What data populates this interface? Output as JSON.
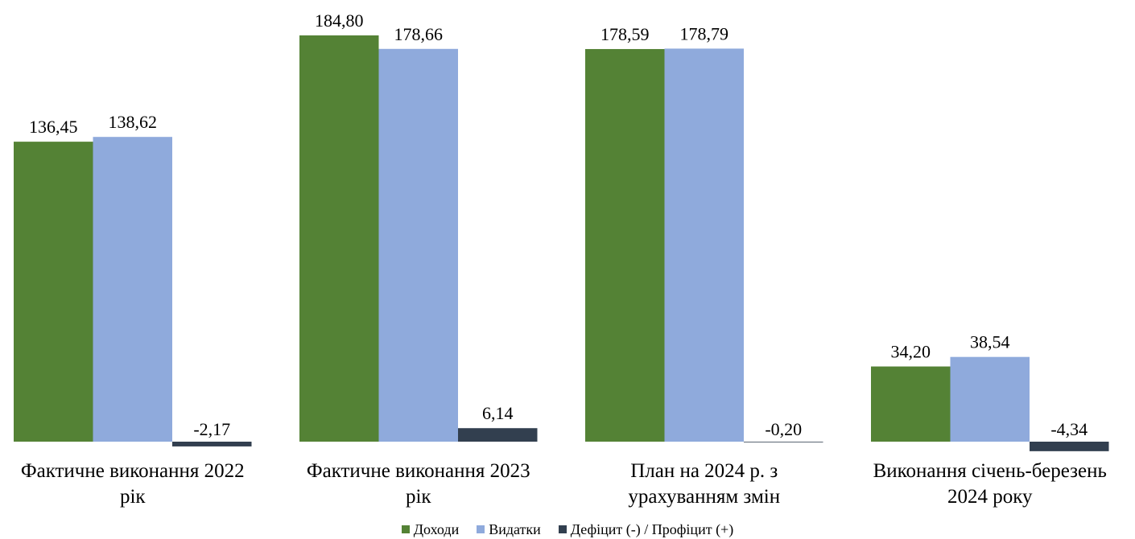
{
  "chart_data": {
    "type": "bar",
    "categories": [
      "Фактичне виконання 2022 рік",
      "Фактичне виконання 2023 рік",
      "План на 2024 р. з урахуванням змін",
      "Виконання січень-березень 2024 року"
    ],
    "category_label_lines": [
      [
        "Фактичне виконання 2022",
        "рік"
      ],
      [
        "Фактичне виконання 2023",
        "рік"
      ],
      [
        "План на 2024 р. з",
        "урахуванням змін"
      ],
      [
        "Виконання січень-березень",
        "2024 року"
      ]
    ],
    "series": [
      {
        "name": "Доходи",
        "color": "#548235",
        "values": [
          136.45,
          184.8,
          178.59,
          34.2
        ],
        "labels": [
          "136,45",
          "184,80",
          "178,59",
          "34,20"
        ]
      },
      {
        "name": "Видатки",
        "color": "#8FAADC",
        "values": [
          138.62,
          178.66,
          178.79,
          38.54
        ],
        "labels": [
          "138,62",
          "178,66",
          "178,79",
          "38,54"
        ]
      },
      {
        "name": "Дефіцит (-) / Профіцит (+)",
        "color": "#323F4F",
        "values": [
          -2.17,
          6.14,
          -0.2,
          -4.34
        ],
        "labels": [
          "-2,17",
          "6,14",
          "-0,20",
          "-4,34"
        ]
      }
    ],
    "legend_position": "bottom",
    "grid": false,
    "value_axis_visible": false
  }
}
